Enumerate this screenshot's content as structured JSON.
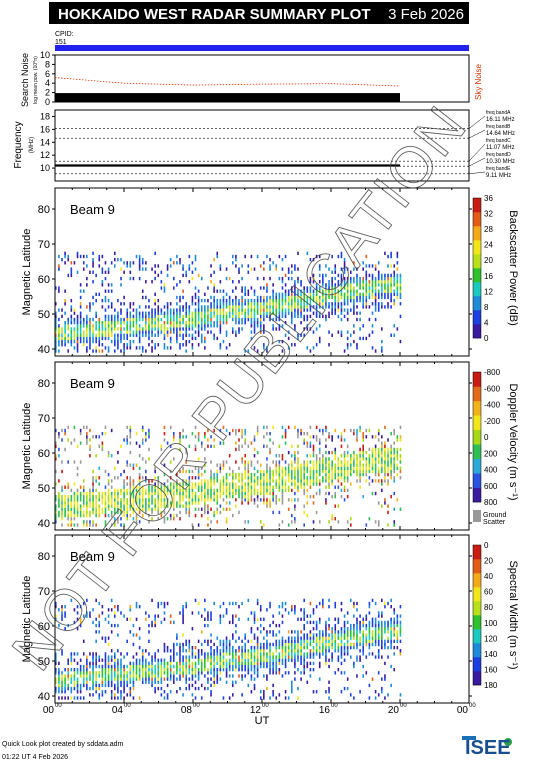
{
  "header": {
    "title": "HOKKAIDO WEST RADAR SUMMARY PLOT",
    "date": "3 Feb 2026",
    "cpid_label": "CPID:",
    "cpid_value": "151"
  },
  "colors": {
    "header_bg": "#000000",
    "header_text": "#ffffff",
    "cpid_bar": "#2222ee",
    "noise": "#cc3300",
    "ground_scatter": "#999999"
  },
  "noise_panel": {
    "ylabel": "Search Noise",
    "ylabel_sub": "log mean pow. (10^n)",
    "side_label": "Sky Noise",
    "yticks": [
      "0",
      "2",
      "4",
      "6",
      "8",
      "10"
    ]
  },
  "freq_panel": {
    "ylabel": "Frequency",
    "ylabel_sub": "(MHz)",
    "yticks": [
      "10",
      "12",
      "14",
      "16",
      "18"
    ],
    "bands": [
      {
        "name": "freq bandA",
        "freq": "16.11 MHz"
      },
      {
        "name": "freq bandB",
        "freq": "14.64 MHz"
      },
      {
        "name": "freq bandC",
        "freq": "11.07 MHz"
      },
      {
        "name": "freq bandD",
        "freq": "10.30 MHz"
      },
      {
        "name": "freq bandE",
        "freq": "9.11 MHz"
      }
    ]
  },
  "panels": [
    {
      "beam": "Beam  9",
      "ylabel": "Magnetic Latitude",
      "cbar_label": "Backscatter Power (dB)",
      "cbar_ticks": [
        "0",
        "4",
        "8",
        "12",
        "16",
        "20",
        "24",
        "28",
        "32",
        "36"
      ]
    },
    {
      "beam": "Beam  9",
      "ylabel": "Magnetic Latitude",
      "cbar_label": "Doppler Velocity (m s⁻¹)",
      "cbar_ticks": [
        "800",
        "600",
        "400",
        "200",
        "0",
        "-200",
        "-400",
        "-600",
        "-800"
      ],
      "gs_label_1": "Ground",
      "gs_label_2": "Scatter"
    },
    {
      "beam": "Beam  9",
      "ylabel": "Magnetic Latitude",
      "cbar_label": "Spectral Width (m s⁻¹)",
      "cbar_ticks": [
        "180",
        "160",
        "140",
        "120",
        "100",
        "80",
        "60",
        "40",
        "20",
        "0"
      ]
    }
  ],
  "lat_ticks": [
    "40",
    "50",
    "60",
    "70",
    "80"
  ],
  "xaxis": {
    "label": "UT",
    "ticks": [
      {
        "hh": "00",
        "mm": "00"
      },
      {
        "hh": "04",
        "mm": "00"
      },
      {
        "hh": "08",
        "mm": "00"
      },
      {
        "hh": "12",
        "mm": "00"
      },
      {
        "hh": "16",
        "mm": "00"
      },
      {
        "hh": "20",
        "mm": "00"
      },
      {
        "hh": "00",
        "mm": "00"
      }
    ]
  },
  "footer": {
    "credit": "Quick Look plot created by sddata.adm",
    "timestamp": "01:22 UT  4 Feb 2026",
    "logo": "ISEE"
  },
  "watermark": "NOT FOR PUBLICATION",
  "chart_data": [
    {
      "type": "line",
      "title": "Search Noise",
      "x_unit": "UT hours",
      "xlim": [
        0,
        24
      ],
      "ylim": [
        0,
        10
      ],
      "series": [
        {
          "name": "Sky Noise",
          "x": [
            0,
            4,
            8,
            12,
            16,
            20
          ],
          "y": [
            5.2,
            4.0,
            3.6,
            3.8,
            3.9,
            3.4
          ]
        }
      ]
    },
    {
      "type": "line",
      "title": "Frequency",
      "xlim": [
        0,
        24
      ],
      "ylim": [
        8,
        19
      ],
      "series": [
        {
          "x": [
            0,
            4,
            8,
            12,
            16,
            20
          ],
          "y": [
            10.4,
            10.4,
            10.4,
            10.4,
            10.4,
            10.4
          ]
        }
      ]
    },
    {
      "type": "heatmap",
      "title": "Backscatter Power",
      "xlim": [
        0,
        24
      ],
      "ylim": [
        38,
        86
      ],
      "x": [
        0,
        2,
        4,
        6,
        8,
        10,
        12,
        14,
        16,
        18,
        20
      ],
      "band_lat": [
        44,
        45,
        46,
        47,
        48,
        50,
        51,
        53,
        55,
        57,
        58
      ],
      "value_range": [
        0,
        36
      ]
    },
    {
      "type": "heatmap",
      "title": "Doppler Velocity",
      "xlim": [
        0,
        24
      ],
      "ylim": [
        38,
        86
      ],
      "x": [
        0,
        2,
        4,
        6,
        8,
        10,
        12,
        14,
        16,
        18,
        20
      ],
      "band_lat": [
        44,
        45,
        46,
        47,
        48,
        50,
        51,
        53,
        55,
        57,
        58
      ],
      "value_range": [
        -800,
        800
      ]
    },
    {
      "type": "heatmap",
      "title": "Spectral Width",
      "xlim": [
        0,
        24
      ],
      "ylim": [
        38,
        86
      ],
      "x": [
        0,
        2,
        4,
        6,
        8,
        10,
        12,
        14,
        16,
        18,
        20
      ],
      "band_lat": [
        44,
        45,
        46,
        47,
        48,
        50,
        51,
        53,
        55,
        57,
        58
      ],
      "value_range": [
        0,
        180
      ]
    }
  ]
}
